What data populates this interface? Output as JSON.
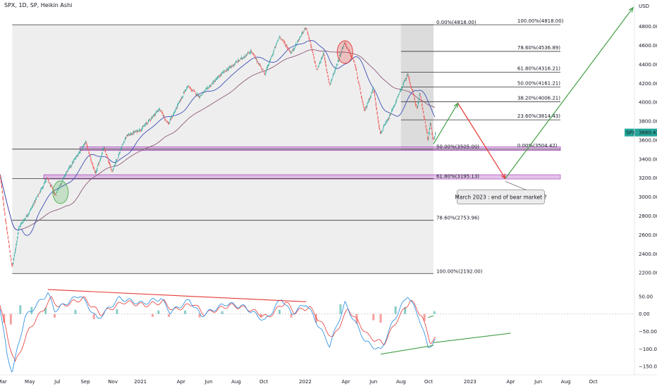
{
  "header": {
    "title": "SPX, 1D, SP, Heikin Ashi"
  },
  "chart_data": [
    {
      "type": "candlestick",
      "title": "SPX, 1D, SP, Heikin Ashi",
      "currency_label": "USD",
      "price_ylim": [
        2060,
        5020
      ],
      "price_ticks": [
        2200,
        2400,
        2600,
        2800,
        3000,
        3200,
        3400,
        3600,
        3800,
        4000,
        4200,
        4400,
        4600,
        4800
      ],
      "x_range": [
        "2020-02-25",
        "2023-12-31"
      ],
      "x_ticks": [
        {
          "date": "2020-03-01",
          "label": "Mar"
        },
        {
          "date": "2020-05-01",
          "label": "May"
        },
        {
          "date": "2020-07-01",
          "label": "Jul"
        },
        {
          "date": "2020-09-01",
          "label": "Sep"
        },
        {
          "date": "2020-11-01",
          "label": "Nov"
        },
        {
          "date": "2021-01-01",
          "label": "2021"
        },
        {
          "date": "2021-04-01",
          "label": "Apr"
        },
        {
          "date": "2021-06-01",
          "label": "Jun"
        },
        {
          "date": "2021-08-01",
          "label": "Aug"
        },
        {
          "date": "2021-10-01",
          "label": "Oct"
        },
        {
          "date": "2022-01-01",
          "label": "2022"
        },
        {
          "date": "2022-04-01",
          "label": "Apr"
        },
        {
          "date": "2022-06-01",
          "label": "Jun"
        },
        {
          "date": "2022-08-01",
          "label": "Aug"
        },
        {
          "date": "2022-10-01",
          "label": "Oct"
        },
        {
          "date": "2023-01-01",
          "label": "2023"
        },
        {
          "date": "2023-04-01",
          "label": "Apr"
        },
        {
          "date": "2023-06-01",
          "label": "Jun"
        },
        {
          "date": "2023-08-01",
          "label": "Aug"
        },
        {
          "date": "2023-10-01",
          "label": "Oct"
        }
      ],
      "price_path": [
        {
          "date": "2020-02-25",
          "value": 3240
        },
        {
          "date": "2020-03-09",
          "value": 2720
        },
        {
          "date": "2020-03-23",
          "value": 2250
        },
        {
          "date": "2020-04-07",
          "value": 2680
        },
        {
          "date": "2020-05-01",
          "value": 2850
        },
        {
          "date": "2020-06-08",
          "value": 3200
        },
        {
          "date": "2020-06-26",
          "value": 3020
        },
        {
          "date": "2020-07-20",
          "value": 3250
        },
        {
          "date": "2020-09-02",
          "value": 3580
        },
        {
          "date": "2020-09-23",
          "value": 3240
        },
        {
          "date": "2020-10-12",
          "value": 3520
        },
        {
          "date": "2020-10-30",
          "value": 3270
        },
        {
          "date": "2020-11-30",
          "value": 3640
        },
        {
          "date": "2021-01-04",
          "value": 3720
        },
        {
          "date": "2021-02-12",
          "value": 3930
        },
        {
          "date": "2021-03-04",
          "value": 3770
        },
        {
          "date": "2021-04-15",
          "value": 4170
        },
        {
          "date": "2021-05-12",
          "value": 4060
        },
        {
          "date": "2021-06-30",
          "value": 4300
        },
        {
          "date": "2021-08-15",
          "value": 4470
        },
        {
          "date": "2021-09-03",
          "value": 4540
        },
        {
          "date": "2021-10-04",
          "value": 4300
        },
        {
          "date": "2021-11-05",
          "value": 4700
        },
        {
          "date": "2021-12-01",
          "value": 4520
        },
        {
          "date": "2022-01-03",
          "value": 4800
        },
        {
          "date": "2022-01-27",
          "value": 4330
        },
        {
          "date": "2022-02-10",
          "value": 4520
        },
        {
          "date": "2022-02-24",
          "value": 4180
        },
        {
          "date": "2022-03-29",
          "value": 4630
        },
        {
          "date": "2022-04-20",
          "value": 4420
        },
        {
          "date": "2022-05-12",
          "value": 3900
        },
        {
          "date": "2022-06-01",
          "value": 4150
        },
        {
          "date": "2022-06-16",
          "value": 3670
        },
        {
          "date": "2022-07-05",
          "value": 3830
        },
        {
          "date": "2022-08-16",
          "value": 4300
        },
        {
          "date": "2022-09-06",
          "value": 3920
        },
        {
          "date": "2022-09-12",
          "value": 4100
        },
        {
          "date": "2022-09-30",
          "value": 3600
        },
        {
          "date": "2022-10-05",
          "value": 3780
        },
        {
          "date": "2022-10-12",
          "value": 3590
        },
        {
          "date": "2022-10-17",
          "value": 3680
        }
      ],
      "last_price": {
        "label": "SPX",
        "value": "3680.43",
        "color": "#26a69a"
      },
      "fibonacci_1": {
        "from": "2020-03-23",
        "to": "2022-10-12",
        "levels": [
          {
            "ratio": "0.00%",
            "price": 4818.0,
            "label": "0.00%(4818.00)"
          },
          {
            "ratio": "50.00%",
            "price": 3505.0,
            "label": "50.00%(3505.00)"
          },
          {
            "ratio": "61.80%",
            "price": 3195.13,
            "label": "61.80%(3195.13)"
          },
          {
            "ratio": "78.60%",
            "price": 2753.96,
            "label": "78.60%(2753.96)"
          },
          {
            "ratio": "100.00%",
            "price": 2192.0,
            "label": "100.00%(2192.00)"
          }
        ]
      },
      "fibonacci_2": {
        "from": "2022-08-01",
        "to": "2023-07-20",
        "levels": [
          {
            "ratio": "100.00%",
            "price": 4818.0,
            "label": "100.00%(4818.00)"
          },
          {
            "ratio": "78.60%",
            "price": 4536.89,
            "label": "78.60%(4536.89)"
          },
          {
            "ratio": "61.80%",
            "price": 4316.21,
            "label": "61.80%(4316.21)"
          },
          {
            "ratio": "50.00%",
            "price": 4161.21,
            "label": "50.00%(4161.21)"
          },
          {
            "ratio": "38.20%",
            "price": 4006.21,
            "label": "38.20%(4006.21)"
          },
          {
            "ratio": "23.60%",
            "price": 3814.43,
            "label": "23.60%(3814.43)"
          },
          {
            "ratio": "0.00%",
            "price": 3504.42,
            "label": "0.00%(3504.42)"
          }
        ]
      },
      "support_zones": [
        {
          "from": "2020-08-20",
          "to": "2023-07-20",
          "low": 3490,
          "high": 3530
        },
        {
          "from": "2020-06-01",
          "to": "2023-07-20",
          "low": 3190,
          "high": 3235
        }
      ],
      "projection": [
        {
          "date": "2022-10-12",
          "value": 3560
        },
        {
          "date": "2022-12-05",
          "value": 3990
        },
        {
          "date": "2023-03-20",
          "value": 3195
        },
        {
          "date": "2023-12-28",
          "value": 5000
        }
      ],
      "annotation": {
        "text": "March 2023 : end of bear market ?",
        "date": "2023-03-10",
        "value": 3000
      },
      "circles": [
        {
          "date": "2020-07-08",
          "value": 3050,
          "color": "#4caf50"
        },
        {
          "date": "2022-03-30",
          "value": 4530,
          "color": "#e53935"
        }
      ]
    },
    {
      "type": "line",
      "title": "",
      "ylim": [
        -170,
        80
      ],
      "y_ticks": [
        50,
        0,
        -50,
        -100,
        -150
      ],
      "y_tick_labels": [
        "50.00",
        "0.00",
        "−50.00",
        "−100.00",
        "−150.00"
      ],
      "blue_path": [
        {
          "date": "2020-02-25",
          "value": 20
        },
        {
          "date": "2020-03-12",
          "value": -120
        },
        {
          "date": "2020-03-23",
          "value": -165
        },
        {
          "date": "2020-04-20",
          "value": -10
        },
        {
          "date": "2020-06-10",
          "value": 60
        },
        {
          "date": "2020-06-25",
          "value": 10
        },
        {
          "date": "2020-08-20",
          "value": 55
        },
        {
          "date": "2020-09-28",
          "value": -15
        },
        {
          "date": "2020-11-15",
          "value": 45
        },
        {
          "date": "2021-01-05",
          "value": 30
        },
        {
          "date": "2021-02-15",
          "value": 45
        },
        {
          "date": "2021-03-08",
          "value": 5
        },
        {
          "date": "2021-04-20",
          "value": 40
        },
        {
          "date": "2021-05-15",
          "value": -5
        },
        {
          "date": "2021-07-10",
          "value": 30
        },
        {
          "date": "2021-08-20",
          "value": 20
        },
        {
          "date": "2021-10-04",
          "value": -20
        },
        {
          "date": "2021-11-10",
          "value": 45
        },
        {
          "date": "2021-12-01",
          "value": 0
        },
        {
          "date": "2022-01-03",
          "value": 30
        },
        {
          "date": "2022-02-24",
          "value": -90
        },
        {
          "date": "2022-03-30",
          "value": 30
        },
        {
          "date": "2022-05-15",
          "value": -80
        },
        {
          "date": "2022-06-17",
          "value": -105
        },
        {
          "date": "2022-07-15",
          "value": -20
        },
        {
          "date": "2022-08-16",
          "value": 55
        },
        {
          "date": "2022-09-10",
          "value": -10
        },
        {
          "date": "2022-09-30",
          "value": -95
        },
        {
          "date": "2022-10-17",
          "value": -75
        }
      ],
      "red_path": [
        {
          "date": "2020-02-25",
          "value": 30
        },
        {
          "date": "2020-03-15",
          "value": -80
        },
        {
          "date": "2020-03-30",
          "value": -140
        },
        {
          "date": "2020-05-01",
          "value": -40
        },
        {
          "date": "2020-06-18",
          "value": 45
        },
        {
          "date": "2020-07-05",
          "value": 20
        },
        {
          "date": "2020-08-28",
          "value": 45
        },
        {
          "date": "2020-10-05",
          "value": 0
        },
        {
          "date": "2020-11-25",
          "value": 35
        },
        {
          "date": "2021-01-10",
          "value": 25
        },
        {
          "date": "2021-02-22",
          "value": 35
        },
        {
          "date": "2021-03-15",
          "value": 10
        },
        {
          "date": "2021-04-28",
          "value": 30
        },
        {
          "date": "2021-05-22",
          "value": 0
        },
        {
          "date": "2021-07-18",
          "value": 25
        },
        {
          "date": "2021-08-28",
          "value": 15
        },
        {
          "date": "2021-10-10",
          "value": -10
        },
        {
          "date": "2021-11-18",
          "value": 35
        },
        {
          "date": "2021-12-08",
          "value": 5
        },
        {
          "date": "2022-01-10",
          "value": 20
        },
        {
          "date": "2022-03-03",
          "value": -70
        },
        {
          "date": "2022-04-06",
          "value": 15
        },
        {
          "date": "2022-05-22",
          "value": -65
        },
        {
          "date": "2022-06-24",
          "value": -85
        },
        {
          "date": "2022-07-22",
          "value": -20
        },
        {
          "date": "2022-08-22",
          "value": 40
        },
        {
          "date": "2022-09-16",
          "value": -5
        },
        {
          "date": "2022-10-05",
          "value": -80
        },
        {
          "date": "2022-10-17",
          "value": -70
        }
      ],
      "histogram": [
        {
          "date": "2020-03-05",
          "value": -25
        },
        {
          "date": "2020-03-20",
          "value": -30
        },
        {
          "date": "2020-04-10",
          "value": 25
        },
        {
          "date": "2020-05-05",
          "value": 20
        },
        {
          "date": "2020-06-05",
          "value": 18
        },
        {
          "date": "2020-06-25",
          "value": -10
        },
        {
          "date": "2020-08-10",
          "value": 12
        },
        {
          "date": "2020-09-20",
          "value": -15
        },
        {
          "date": "2020-11-10",
          "value": 14
        },
        {
          "date": "2021-01-28",
          "value": -8
        },
        {
          "date": "2021-02-10",
          "value": 10
        },
        {
          "date": "2021-03-05",
          "value": -8
        },
        {
          "date": "2021-04-10",
          "value": 10
        },
        {
          "date": "2021-05-12",
          "value": -10
        },
        {
          "date": "2021-07-01",
          "value": 8
        },
        {
          "date": "2021-09-25",
          "value": -10
        },
        {
          "date": "2021-11-05",
          "value": 12
        },
        {
          "date": "2021-12-01",
          "value": -10
        },
        {
          "date": "2022-01-25",
          "value": -25
        },
        {
          "date": "2022-03-20",
          "value": 28
        },
        {
          "date": "2022-04-25",
          "value": -28
        },
        {
          "date": "2022-06-01",
          "value": -18
        },
        {
          "date": "2022-06-17",
          "value": -25
        },
        {
          "date": "2022-07-20",
          "value": 22
        },
        {
          "date": "2022-08-10",
          "value": 20
        },
        {
          "date": "2022-09-22",
          "value": -20
        },
        {
          "date": "2022-10-14",
          "value": 8
        }
      ],
      "trend_lines": [
        {
          "from": {
            "date": "2020-06-10",
            "value": 70
          },
          "to": {
            "date": "2022-01-03",
            "value": 35
          },
          "color": "#e53935"
        },
        {
          "from": {
            "date": "2022-06-17",
            "value": -115
          },
          "to": {
            "date": "2022-10-12",
            "value": -90
          },
          "color": "#43a047"
        },
        {
          "from": {
            "date": "2022-10-12",
            "value": -82
          },
          "to": {
            "date": "2023-04-01",
            "value": -55
          },
          "color": "#43a047"
        },
        {
          "from": {
            "date": "2022-09-30",
            "value": -10
          },
          "to": {
            "date": "2022-10-12",
            "value": -5
          },
          "color": "#43a047"
        }
      ]
    }
  ]
}
